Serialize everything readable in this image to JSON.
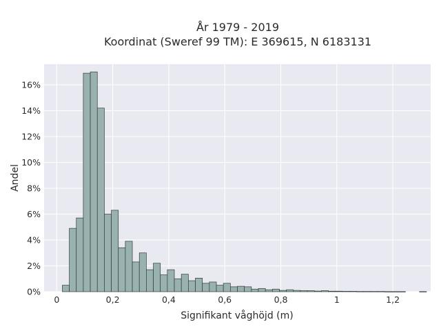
{
  "chart_data": {
    "type": "bar",
    "title_lines": [
      "År 1979 - 2019",
      "Koordinat (Sweref 99 TM): E 369615, N 6183131"
    ],
    "xlabel": "Signifikant våghöjd (m)",
    "ylabel": "Andel",
    "x_ticks": [
      {
        "value": 0,
        "label": "0"
      },
      {
        "value": 0.2,
        "label": "0,2"
      },
      {
        "value": 0.4,
        "label": "0,4"
      },
      {
        "value": 0.6,
        "label": "0,6"
      },
      {
        "value": 0.8,
        "label": "0,8"
      },
      {
        "value": 1.0,
        "label": "1"
      },
      {
        "value": 1.2,
        "label": "1,2"
      }
    ],
    "y_ticks": [
      {
        "value": 0,
        "label": "0%"
      },
      {
        "value": 2,
        "label": "2%"
      },
      {
        "value": 4,
        "label": "4%"
      },
      {
        "value": 6,
        "label": "6%"
      },
      {
        "value": 8,
        "label": "8%"
      },
      {
        "value": 10,
        "label": "10%"
      },
      {
        "value": 12,
        "label": "12%"
      },
      {
        "value": 14,
        "label": "14%"
      },
      {
        "value": 16,
        "label": "16%"
      }
    ],
    "xlim": [
      -0.045,
      1.335
    ],
    "ylim": [
      0,
      17.6
    ],
    "bin_width": 0.025,
    "bin_start": 0.02,
    "values": [
      0.5,
      4.9,
      5.7,
      16.9,
      17.0,
      14.2,
      6.0,
      6.3,
      3.4,
      3.9,
      2.3,
      3.0,
      1.7,
      2.2,
      1.3,
      1.7,
      1.0,
      1.35,
      0.85,
      1.05,
      0.65,
      0.75,
      0.5,
      0.65,
      0.38,
      0.42,
      0.38,
      0.2,
      0.25,
      0.15,
      0.2,
      0.1,
      0.15,
      0.1,
      0.08,
      0.08,
      0.05,
      0.08,
      0.04,
      0.04,
      0.03,
      0.03,
      0.02,
      0.02,
      0.02,
      0.02,
      0.01,
      0.01,
      0.01,
      0,
      0,
      0.01
    ],
    "grid": true,
    "colors": {
      "bar_fill": "#99b2b0",
      "bar_stroke": "#2f3b3a",
      "plot_bg": "#e9e9f2",
      "grid": "#ffffff"
    }
  }
}
